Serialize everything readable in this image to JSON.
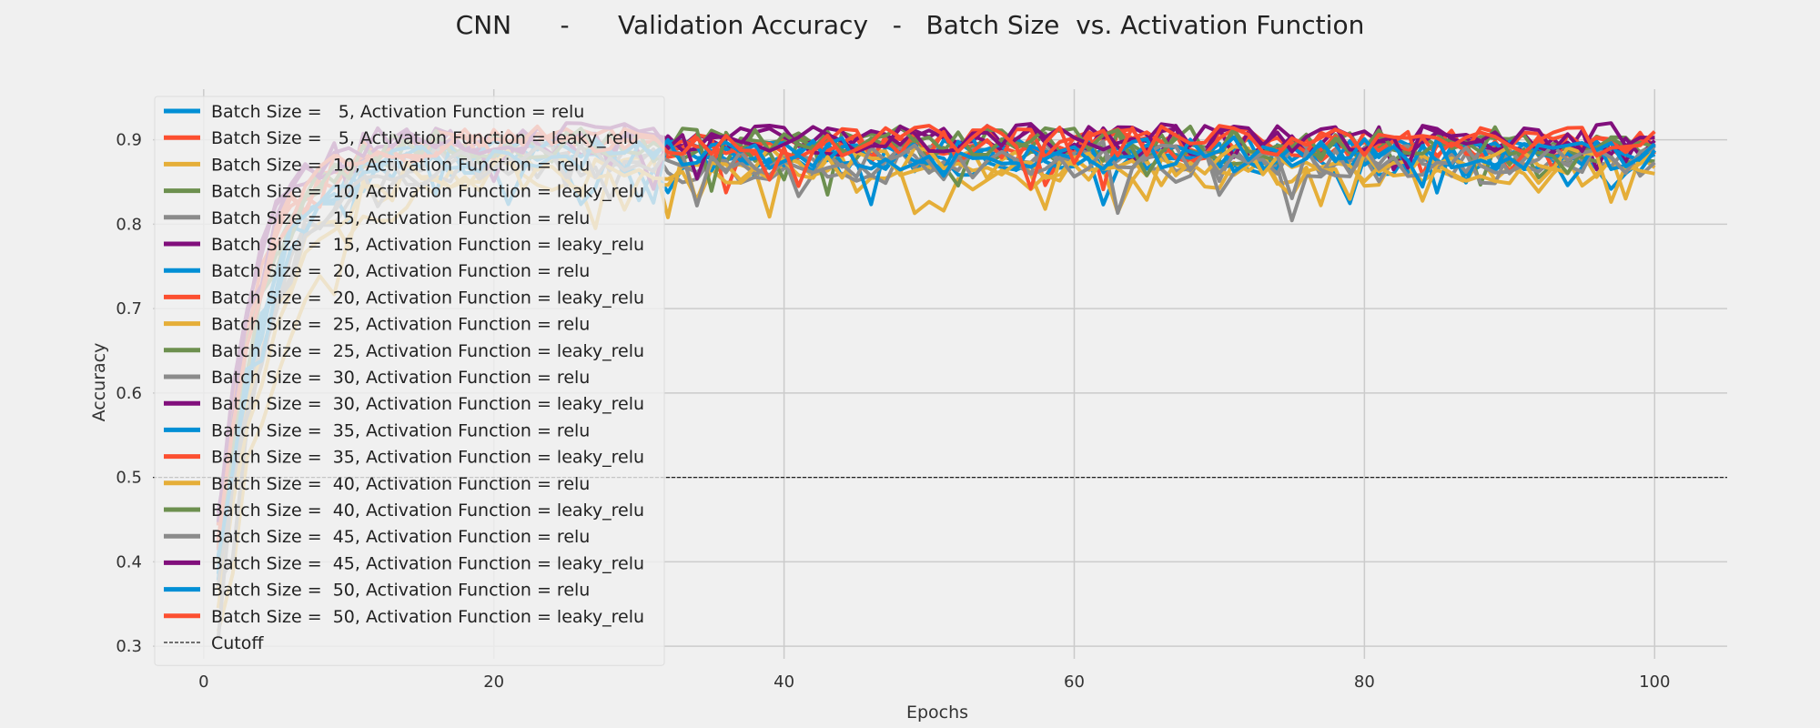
{
  "chart_data": {
    "type": "line",
    "title": "CNN      -      Validation Accuracy   -   Batch Size  vs. Activation Function",
    "xlabel": "Epochs",
    "ylabel": "Accuracy",
    "xlim": [
      -3.5,
      105
    ],
    "ylim": [
      0.285,
      0.96
    ],
    "x_ticks": [
      0,
      20,
      40,
      60,
      80,
      100
    ],
    "y_ticks": [
      0.3,
      0.4,
      0.5,
      0.6,
      0.7,
      0.8,
      0.9
    ],
    "grid": true,
    "legend_position": "upper-left",
    "epochs": [
      1,
      100
    ],
    "series": [
      {
        "name": "Batch Size =   5, Activation Function = relu",
        "color": "#008fd5",
        "start": 0.37,
        "plateau": 0.875,
        "rate": 0.32,
        "noise": 0.02
      },
      {
        "name": "Batch Size =   5, Activation Function = leaky_relu",
        "color": "#fc4f30",
        "start": 0.42,
        "plateau": 0.892,
        "rate": 0.36,
        "noise": 0.018
      },
      {
        "name": "Batch Size =  10, Activation Function = relu",
        "color": "#e5ae38",
        "start": 0.3,
        "plateau": 0.86,
        "rate": 0.22,
        "noise": 0.022
      },
      {
        "name": "Batch Size =  10, Activation Function = leaky_relu",
        "color": "#6d904f",
        "start": 0.4,
        "plateau": 0.89,
        "rate": 0.33,
        "noise": 0.02
      },
      {
        "name": "Batch Size =  15, Activation Function = relu",
        "color": "#8b8b8b",
        "start": 0.35,
        "plateau": 0.87,
        "rate": 0.28,
        "noise": 0.022
      },
      {
        "name": "Batch Size =  15, Activation Function = leaky_relu",
        "color": "#810f7c",
        "start": 0.45,
        "plateau": 0.9,
        "rate": 0.4,
        "noise": 0.018
      },
      {
        "name": "Batch Size =  20, Activation Function = relu",
        "color": "#008fd5",
        "start": 0.38,
        "plateau": 0.882,
        "rate": 0.3,
        "noise": 0.02
      },
      {
        "name": "Batch Size =  20, Activation Function = leaky_relu",
        "color": "#fc4f30",
        "start": 0.43,
        "plateau": 0.895,
        "rate": 0.35,
        "noise": 0.018
      },
      {
        "name": "Batch Size =  25, Activation Function = relu",
        "color": "#e5ae38",
        "start": 0.36,
        "plateau": 0.868,
        "rate": 0.27,
        "noise": 0.02
      },
      {
        "name": "Batch Size =  25, Activation Function = leaky_relu",
        "color": "#6d904f",
        "start": 0.41,
        "plateau": 0.893,
        "rate": 0.34,
        "noise": 0.019
      },
      {
        "name": "Batch Size =  30, Activation Function = relu",
        "color": "#8b8b8b",
        "start": 0.37,
        "plateau": 0.878,
        "rate": 0.29,
        "noise": 0.021
      },
      {
        "name": "Batch Size =  30, Activation Function = leaky_relu",
        "color": "#810f7c",
        "start": 0.44,
        "plateau": 0.897,
        "rate": 0.38,
        "noise": 0.018
      },
      {
        "name": "Batch Size =  35, Activation Function = relu",
        "color": "#008fd5",
        "start": 0.39,
        "plateau": 0.88,
        "rate": 0.31,
        "noise": 0.02
      },
      {
        "name": "Batch Size =  35, Activation Function = leaky_relu",
        "color": "#fc4f30",
        "start": 0.42,
        "plateau": 0.896,
        "rate": 0.35,
        "noise": 0.018
      },
      {
        "name": "Batch Size =  40, Activation Function = relu",
        "color": "#e5ae38",
        "start": 0.34,
        "plateau": 0.872,
        "rate": 0.26,
        "noise": 0.021
      },
      {
        "name": "Batch Size =  40, Activation Function = leaky_relu",
        "color": "#6d904f",
        "start": 0.4,
        "plateau": 0.898,
        "rate": 0.33,
        "noise": 0.019
      },
      {
        "name": "Batch Size =  45, Activation Function = relu",
        "color": "#8b8b8b",
        "start": 0.36,
        "plateau": 0.874,
        "rate": 0.28,
        "noise": 0.021
      },
      {
        "name": "Batch Size =  45, Activation Function = leaky_relu",
        "color": "#810f7c",
        "start": 0.45,
        "plateau": 0.902,
        "rate": 0.39,
        "noise": 0.018
      },
      {
        "name": "Batch Size =  50, Activation Function = relu",
        "color": "#008fd5",
        "start": 0.38,
        "plateau": 0.884,
        "rate": 0.3,
        "noise": 0.02
      },
      {
        "name": "Batch Size =  50, Activation Function = leaky_relu",
        "color": "#fc4f30",
        "start": 0.43,
        "plateau": 0.899,
        "rate": 0.36,
        "noise": 0.018
      }
    ],
    "cutoff": {
      "name": "Cutoff",
      "value": 0.5,
      "color": "#222222"
    }
  }
}
